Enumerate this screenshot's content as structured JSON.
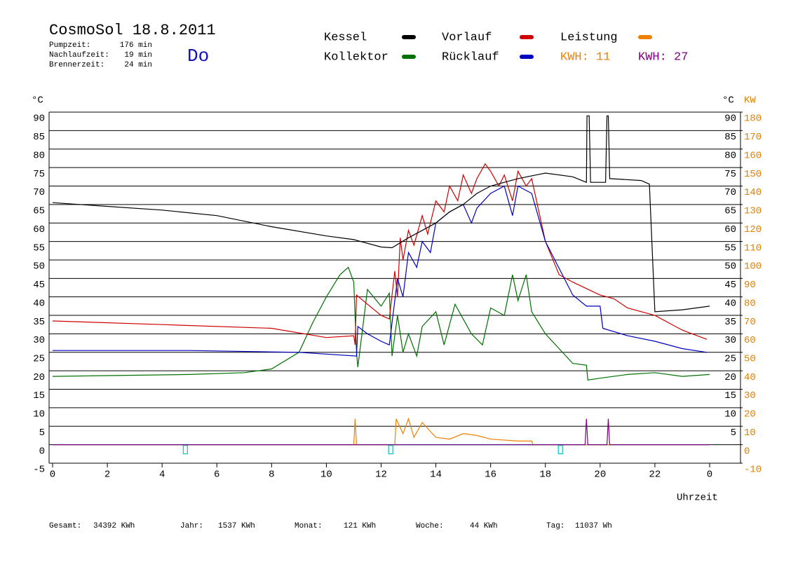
{
  "header": {
    "title": "CosmoSol 18.8.2011",
    "day": "Do",
    "stats": [
      {
        "label": "Pumpzeit:",
        "value": "176 min"
      },
      {
        "label": "Nachlaufzeit:",
        "value": "19 min"
      },
      {
        "label": "Brennerzeit:",
        "value": "24 min"
      }
    ]
  },
  "chart_data": {
    "type": "line",
    "ylabel": "°C",
    "y_right_label": "°C",
    "y2label": "KW",
    "xlabel": "Uhrzeit",
    "xlim": [
      0,
      24
    ],
    "ylim": [
      -5,
      90
    ],
    "y2lim": [
      -10,
      180
    ],
    "grid": true,
    "xticks": [
      0,
      2,
      4,
      6,
      8,
      10,
      12,
      14,
      16,
      18,
      20,
      22,
      {
        "value": 24,
        "label": "0"
      }
    ],
    "yticks": [
      -5,
      0,
      5,
      10,
      15,
      20,
      25,
      30,
      35,
      40,
      45,
      50,
      55,
      60,
      65,
      70,
      75,
      80,
      85,
      90
    ],
    "y_right_ticks": [
      5,
      10,
      15,
      20,
      25,
      30,
      35,
      40,
      45,
      50,
      55,
      60,
      65,
      70,
      75,
      80,
      85,
      90
    ],
    "y2ticks": [
      -10,
      0,
      10,
      20,
      30,
      40,
      50,
      60,
      70,
      80,
      90,
      100,
      110,
      120,
      130,
      140,
      150,
      160,
      170,
      180
    ],
    "series": [
      {
        "name": "Kessel",
        "color": "#000000",
        "legend": "swatch",
        "x": [
          0,
          4,
          6,
          8,
          10,
          11,
          12,
          12.4,
          13,
          13.5,
          14,
          14.5,
          15,
          15.5,
          16,
          16.5,
          17,
          18,
          19,
          19.5,
          19.52,
          19.6,
          19.65,
          20.2,
          20.25,
          20.3,
          20.35,
          21.5,
          21.8,
          22,
          23,
          24
        ],
        "values": [
          65.5,
          63.5,
          62,
          59,
          56.5,
          55.5,
          53.5,
          53.3,
          56,
          58,
          60,
          63,
          65,
          68,
          70,
          71,
          72,
          73.5,
          72.5,
          71,
          89,
          89,
          71,
          71,
          89,
          89,
          72,
          71.5,
          70.5,
          36,
          36.5,
          37.5
        ]
      },
      {
        "name": "Vorlauf",
        "color": "#d00000",
        "legend": "swatch",
        "x": [
          0,
          4,
          8,
          10,
          11,
          11.05,
          11.1,
          11.5,
          12,
          12.3,
          12.5,
          12.6,
          12.7,
          12.8,
          13,
          13.2,
          13.5,
          13.7,
          14,
          14.3,
          14.5,
          14.8,
          15,
          15.3,
          15.5,
          15.8,
          16,
          16.3,
          16.5,
          16.8,
          17,
          17.3,
          17.5,
          18,
          18.5,
          19,
          20,
          20.5,
          21,
          22,
          23,
          23.9
        ],
        "values": [
          33.5,
          32.5,
          31.5,
          29,
          29.5,
          27,
          40.5,
          38,
          35,
          34,
          47,
          40,
          56,
          50,
          58,
          54,
          62,
          57,
          66,
          63,
          70,
          66,
          73,
          68,
          72,
          76,
          74,
          70,
          73,
          66,
          74,
          70,
          72,
          55,
          46,
          44,
          40.5,
          39.5,
          37,
          35,
          31,
          28.5
        ]
      },
      {
        "name": "Leistung",
        "color": "#f08000",
        "legend": "swatch",
        "axis": "y2",
        "x": [
          0,
          11,
          11.05,
          11.1,
          12.5,
          12.55,
          12.8,
          13,
          13.2,
          13.5,
          14,
          14.5,
          15,
          15.5,
          16,
          17,
          17.5,
          17.55,
          24
        ],
        "values": [
          0,
          0,
          14,
          0,
          0,
          14,
          6,
          14,
          4,
          12,
          4,
          3,
          6,
          5,
          3,
          2,
          2,
          0,
          0
        ]
      },
      {
        "name": "Kollektor",
        "color": "#007000",
        "legend": "swatch",
        "x": [
          0,
          5,
          7,
          8,
          9,
          9.5,
          10,
          10.5,
          10.8,
          11,
          11.1,
          11.15,
          11.5,
          12,
          12.3,
          12.4,
          12.6,
          12.8,
          13,
          13.3,
          13.5,
          14,
          14.3,
          14.7,
          15,
          15.3,
          15.7,
          16,
          16.5,
          16.8,
          17,
          17.3,
          17.5,
          18,
          18.5,
          19,
          19.5,
          19.55,
          20,
          21,
          22,
          23,
          24
        ],
        "values": [
          18.5,
          19,
          19.5,
          20.5,
          25,
          33,
          40,
          46,
          48,
          44,
          25,
          21,
          42,
          37.5,
          41,
          24,
          35,
          25,
          30,
          24,
          32,
          36,
          27,
          38,
          34,
          30,
          27,
          37,
          35,
          46,
          39,
          46,
          36,
          30,
          26,
          22,
          21.5,
          17.5,
          18,
          19,
          19.5,
          18.5,
          19
        ]
      },
      {
        "name": "Rücklauf",
        "color": "#0000c0",
        "legend": "swatch",
        "x": [
          0,
          5,
          9,
          11.1,
          11.15,
          11.5,
          12,
          12.3,
          12.6,
          12.8,
          13,
          13.3,
          13.5,
          13.8,
          14,
          14.5,
          15,
          15.3,
          15.5,
          16,
          16.5,
          16.8,
          17,
          17.5,
          18,
          19,
          19.5,
          20,
          20.1,
          21,
          22,
          23,
          23.9
        ],
        "values": [
          25.5,
          25.5,
          25,
          24,
          32,
          30,
          28,
          27,
          45,
          40,
          52,
          48,
          55,
          52,
          60,
          63,
          65,
          60,
          64,
          68,
          70,
          62,
          70,
          68,
          55,
          40.5,
          37.5,
          37.5,
          31.5,
          29.5,
          28,
          26,
          25
        ]
      },
      {
        "name": "KWH: 27",
        "color": "#800080",
        "legend": "text",
        "axis": "y2",
        "x": [
          0,
          19.45,
          19.5,
          19.55,
          20.25,
          20.3,
          20.35,
          24
        ],
        "values": [
          0,
          0,
          14,
          0,
          0,
          14,
          0,
          0
        ]
      }
    ],
    "annotations": [
      {
        "text": "KWH: 11",
        "color": "#f08000"
      }
    ],
    "baseline": {
      "value": 0,
      "color": "#00d0d0"
    },
    "markers": {
      "color": "#00c8c8",
      "x": [
        4.85,
        12.35,
        18.55
      ]
    }
  },
  "footer": [
    {
      "label": "Gesamt:",
      "value": "34392 KWh"
    },
    {
      "label": "Jahr:",
      "value": "1537 KWh"
    },
    {
      "label": "Monat:",
      "value": "121 KWh"
    },
    {
      "label": "Woche:",
      "value": "44 KWh"
    },
    {
      "label": "Tag:",
      "value": "11037 Wh"
    }
  ]
}
